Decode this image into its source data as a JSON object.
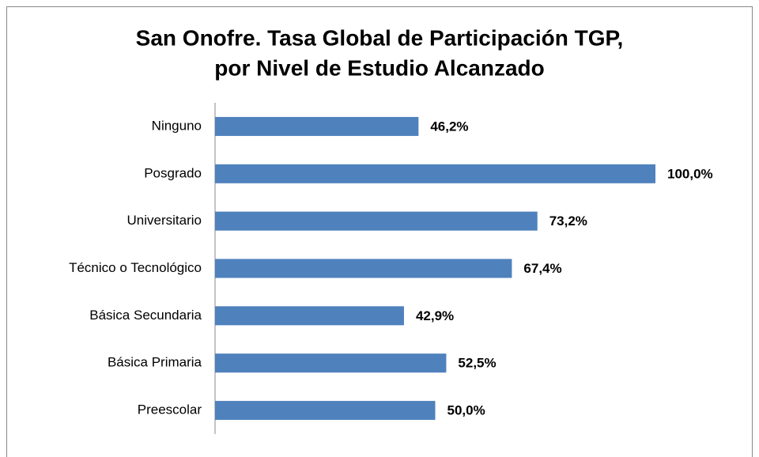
{
  "chart_data": {
    "type": "bar",
    "orientation": "horizontal",
    "title": [
      "San Onofre. Tasa Global de Participación TGP,",
      "por Nivel de Estudio Alcanzado"
    ],
    "categories": [
      "Ninguno",
      "Posgrado",
      "Universitario",
      "Técnico o Tecnológico",
      "Básica Secundaria",
      "Básica Primaria",
      "Preescolar"
    ],
    "values": [
      46.2,
      100.0,
      73.2,
      67.4,
      42.9,
      52.5,
      50.0
    ],
    "value_labels": [
      "46,2%",
      "100,0%",
      "73,2%",
      "67,4%",
      "42,9%",
      "52,5%",
      "50,0%"
    ],
    "color": "#4f81bd",
    "xlim": [
      0,
      100
    ]
  }
}
